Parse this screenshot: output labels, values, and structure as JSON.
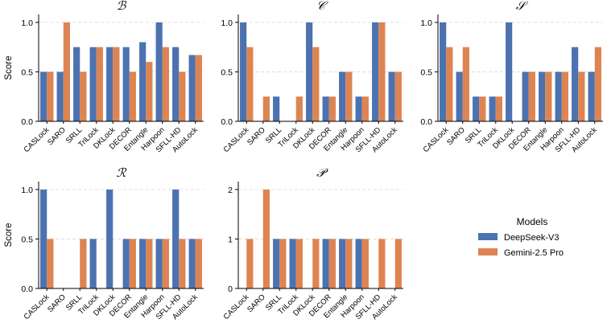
{
  "colors": {
    "deepseek": "#4C72B0",
    "gemini": "#DD8452",
    "grid": "#d8d8d8",
    "axis": "#000000"
  },
  "legend": {
    "title": "Models",
    "entries": [
      {
        "label": "DeepSeek-V3",
        "color": "#4C72B0"
      },
      {
        "label": "Gemini-2.5 Pro",
        "color": "#DD8452"
      }
    ]
  },
  "chart_data": [
    {
      "type": "bar",
      "title": "ℬ",
      "ylabel": "Score",
      "ylim": [
        0,
        1.08
      ],
      "yticks": [
        0.0,
        0.5,
        1.0
      ],
      "grid": "y-dashed",
      "categories": [
        "CASLock",
        "SARO",
        "SRLL",
        "TriLock",
        "DKLock",
        "DECOR",
        "Entangle",
        "Harpoon",
        "SFLL-HD",
        "AutoLock"
      ],
      "series": [
        {
          "name": "DeepSeek-V3",
          "values": [
            0.5,
            0.5,
            0.75,
            0.75,
            0.75,
            0.75,
            0.8,
            1.0,
            0.75,
            0.67
          ]
        },
        {
          "name": "Gemini-2.5 Pro",
          "values": [
            0.5,
            1.0,
            0.5,
            0.75,
            0.75,
            0.5,
            0.6,
            0.75,
            0.5,
            0.67
          ]
        }
      ]
    },
    {
      "type": "bar",
      "title": "𝒞",
      "ylabel": "",
      "ylim": [
        0,
        1.08
      ],
      "yticks": [
        0.0,
        0.5,
        1.0
      ],
      "grid": "y-dashed",
      "categories": [
        "CASLock",
        "SARO",
        "SRLL",
        "TriLock",
        "DKLock",
        "DECOR",
        "Entangle",
        "Harpoon",
        "SFLL-HD",
        "AutoLock"
      ],
      "series": [
        {
          "name": "DeepSeek-V3",
          "values": [
            1.0,
            0,
            0.25,
            0,
            1.0,
            0.25,
            0.5,
            0.25,
            1.0,
            0.5
          ]
        },
        {
          "name": "Gemini-2.5 Pro",
          "values": [
            0.75,
            0.25,
            0,
            0.25,
            0.75,
            0.25,
            0.5,
            0.25,
            1.0,
            0.5
          ]
        }
      ]
    },
    {
      "type": "bar",
      "title": "𝒮",
      "ylabel": "",
      "ylim": [
        0,
        1.08
      ],
      "yticks": [
        0.0,
        0.5,
        1.0
      ],
      "grid": "y-dashed",
      "categories": [
        "CASLock",
        "SARO",
        "SRLL",
        "TriLock",
        "DKLock",
        "DECOR",
        "Entangle",
        "Harpoon",
        "SFLL-HD",
        "AutoLock"
      ],
      "series": [
        {
          "name": "DeepSeek-V3",
          "values": [
            1.0,
            0.5,
            0.25,
            0.25,
            1.0,
            0.5,
            0.5,
            0.5,
            0.75,
            0.5
          ]
        },
        {
          "name": "Gemini-2.5 Pro",
          "values": [
            0.75,
            0.75,
            0.25,
            0.25,
            0,
            0.5,
            0.5,
            0.5,
            0.5,
            0.75
          ]
        }
      ]
    },
    {
      "type": "bar",
      "title": "ℛ",
      "ylabel": "Score",
      "ylim": [
        0,
        1.08
      ],
      "yticks": [
        0.0,
        0.5,
        1.0
      ],
      "grid": "y-dashed",
      "categories": [
        "CASLock",
        "SARO",
        "SRLL",
        "TriLock",
        "DKLock",
        "DECOR",
        "Entangle",
        "Harpoon",
        "SFLL-HD",
        "AutoLock"
      ],
      "series": [
        {
          "name": "DeepSeek-V3",
          "values": [
            1.0,
            0,
            0,
            0.5,
            1.0,
            0.5,
            0.5,
            0.5,
            1.0,
            0.5
          ]
        },
        {
          "name": "Gemini-2.5 Pro",
          "values": [
            0.5,
            0,
            0.5,
            0,
            0,
            0.5,
            0.5,
            0.5,
            0.5,
            0.5
          ]
        }
      ]
    },
    {
      "type": "bar",
      "title": "𝒫",
      "ylabel": "",
      "ylim": [
        0,
        2.16
      ],
      "yticks": [
        0,
        1,
        2
      ],
      "grid": "y-dashed",
      "categories": [
        "CASLock",
        "SARO",
        "SRLL",
        "TriLock",
        "DKLock",
        "DECOR",
        "Entangle",
        "Harpoon",
        "SFLL-HD",
        "AutoLock"
      ],
      "series": [
        {
          "name": "DeepSeek-V3",
          "values": [
            0,
            0,
            1,
            1,
            0,
            1,
            1,
            1,
            0,
            0
          ]
        },
        {
          "name": "Gemini-2.5 Pro",
          "values": [
            1,
            2,
            1,
            1,
            1,
            1,
            1,
            1,
            1,
            1
          ]
        }
      ]
    }
  ]
}
